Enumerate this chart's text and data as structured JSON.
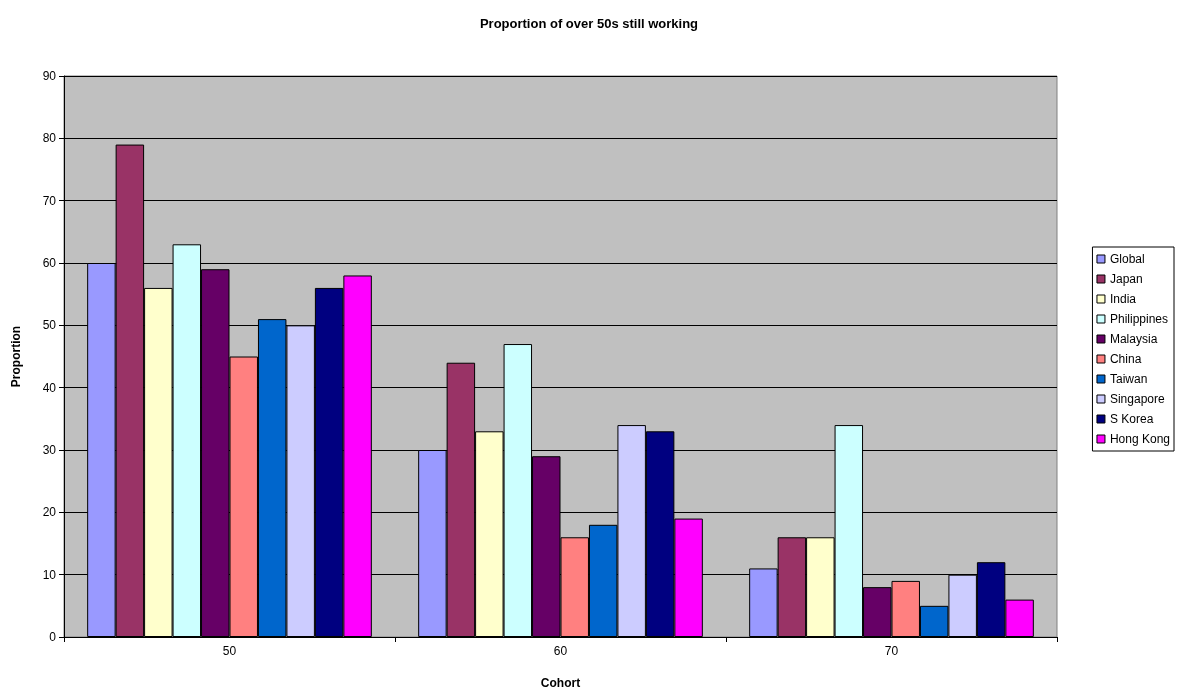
{
  "chart_data": {
    "type": "bar",
    "title": "Proportion of over 50s still working",
    "xlabel": "Cohort",
    "ylabel": "Proportion",
    "categories": [
      "50",
      "60",
      "70"
    ],
    "series": [
      {
        "name": "Global",
        "color": "#9999ff",
        "values": [
          60,
          30,
          11
        ]
      },
      {
        "name": "Japan",
        "color": "#993366",
        "values": [
          79,
          44,
          16
        ]
      },
      {
        "name": "India",
        "color": "#ffffcc",
        "values": [
          56,
          33,
          16
        ]
      },
      {
        "name": "Philippines",
        "color": "#ccffff",
        "values": [
          63,
          47,
          34
        ]
      },
      {
        "name": "Malaysia",
        "color": "#660066",
        "values": [
          59,
          29,
          8
        ]
      },
      {
        "name": "China",
        "color": "#ff8080",
        "values": [
          45,
          16,
          9
        ]
      },
      {
        "name": "Taiwan",
        "color": "#0066cc",
        "values": [
          51,
          18,
          5
        ]
      },
      {
        "name": "Singapore",
        "color": "#ccccff",
        "values": [
          50,
          34,
          10
        ]
      },
      {
        "name": "S Korea",
        "color": "#000080",
        "values": [
          56,
          33,
          12
        ]
      },
      {
        "name": "Hong Kong",
        "color": "#ff00ff",
        "values": [
          58,
          19,
          6
        ]
      }
    ],
    "ylim": [
      0,
      90
    ],
    "yticks": [
      0,
      10,
      20,
      30,
      40,
      50,
      60,
      70,
      80,
      90
    ],
    "grid": "y",
    "legend": "right"
  }
}
